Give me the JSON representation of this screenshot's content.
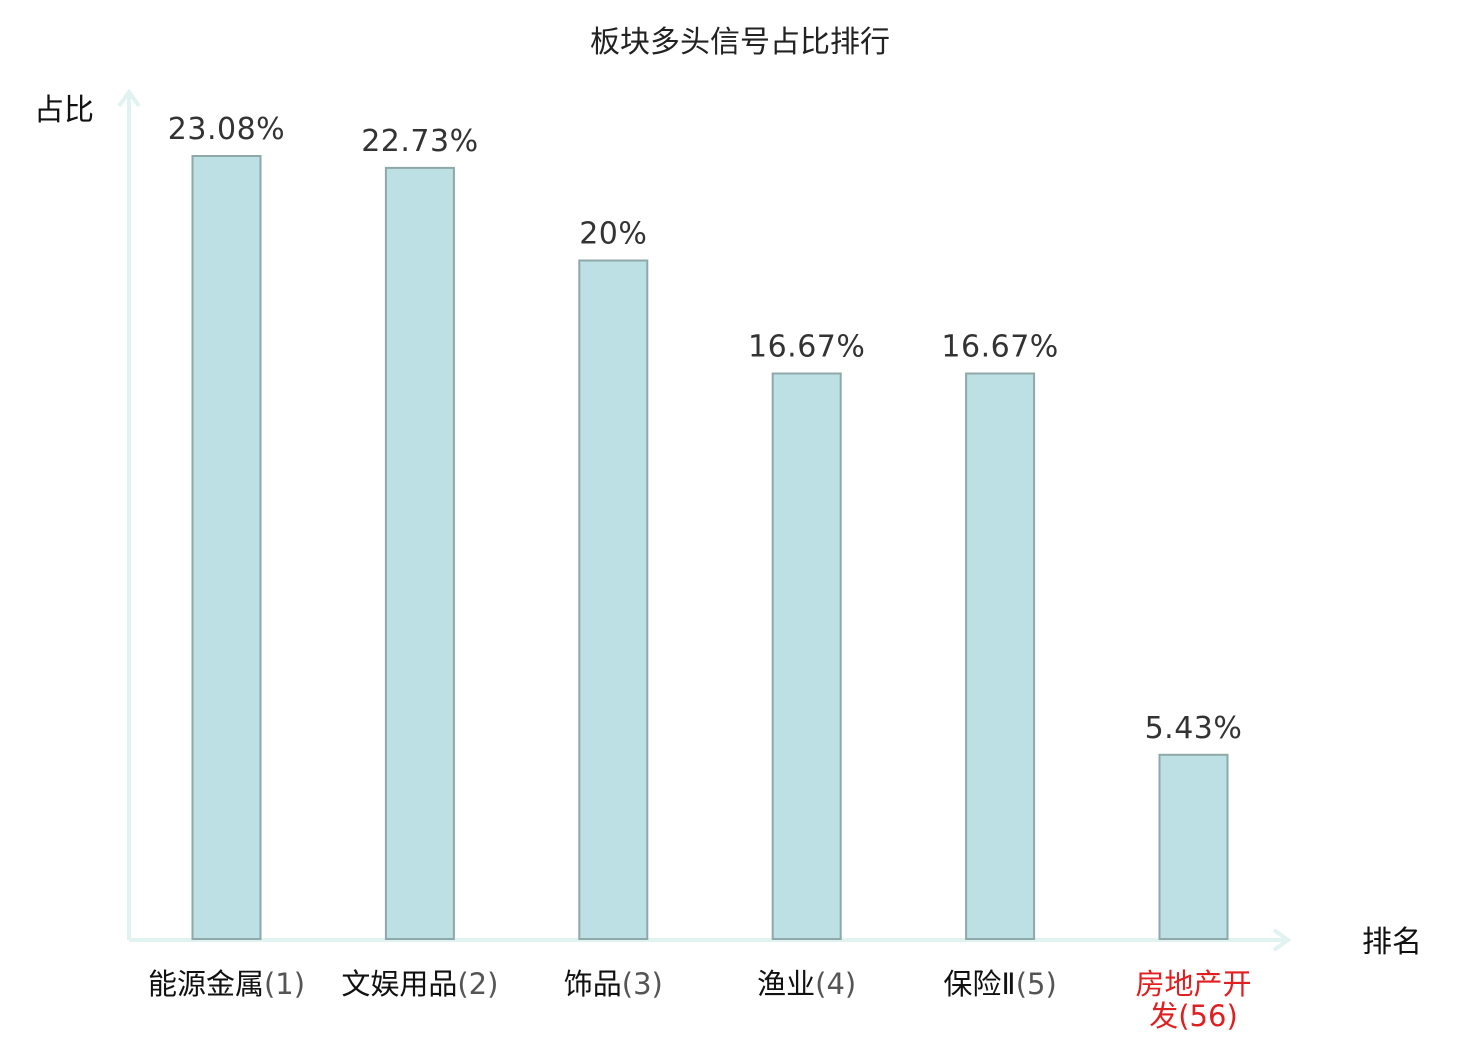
{
  "chart_data": {
    "type": "bar",
    "title": "板块多头信号占比排行",
    "ylabel": "占比",
    "xlabel": "排名",
    "categories": [
      {
        "name": "能源金属",
        "rank": "(1)",
        "highlight": false
      },
      {
        "name": "文娱用品",
        "rank": "(2)",
        "highlight": false
      },
      {
        "name": "饰品",
        "rank": "(3)",
        "highlight": false
      },
      {
        "name": "渔业",
        "rank": "(4)",
        "highlight": false
      },
      {
        "name": "保险Ⅱ",
        "rank": "(5)",
        "highlight": false
      },
      {
        "name": "房地产开发",
        "rank": "(56)",
        "highlight": true
      }
    ],
    "values": [
      23.08,
      22.73,
      20,
      16.67,
      16.67,
      5.43
    ],
    "value_labels": [
      "23.08%",
      "22.73%",
      "20%",
      "16.67%",
      "16.67%",
      "5.43%"
    ],
    "ylim": [
      0,
      25
    ],
    "grid": false,
    "colors": {
      "bar_fill": "#bce0e3",
      "bar_stroke": "#8fa8aa",
      "axis": "#e0f3f1",
      "text": "#111111",
      "rank_text": "#555555",
      "highlight": "#e02020"
    }
  }
}
